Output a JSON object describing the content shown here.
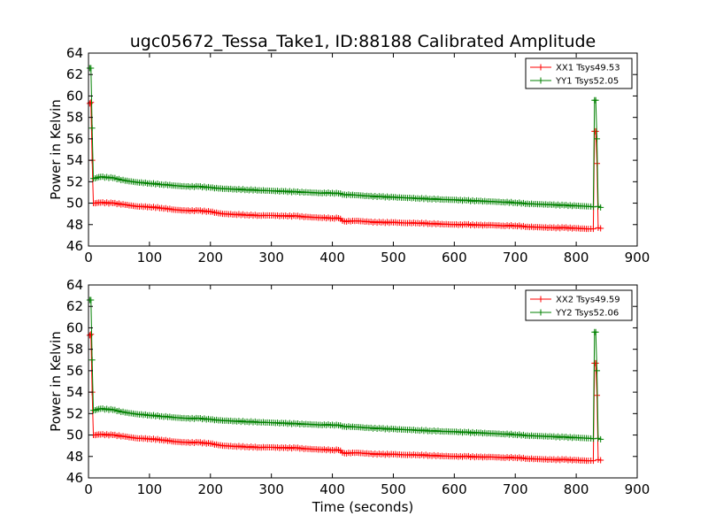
{
  "chart_data": [
    {
      "type": "line",
      "title": "ugc05672_Tessa_Take1, ID:88188 Calibrated Amplitude",
      "xlabel": "",
      "ylabel": "Power in Kelvin",
      "xlim": [
        0,
        900
      ],
      "ylim": [
        46,
        64
      ],
      "xticks": [
        0,
        100,
        200,
        300,
        400,
        500,
        600,
        700,
        800,
        900
      ],
      "yticks": [
        46,
        48,
        50,
        52,
        54,
        56,
        58,
        60,
        62,
        64
      ],
      "legend_position": "top-right",
      "marker": "plus",
      "series": [
        {
          "name": "XX1 Tsys49.53",
          "color": "#ff0000",
          "points": [
            [
              2,
              59.3
            ],
            [
              4,
              59.4
            ],
            [
              6,
              54.0
            ],
            [
              8,
              50.0
            ],
            [
              20,
              50.05
            ],
            [
              40,
              50.0
            ],
            [
              60,
              49.85
            ],
            [
              80,
              49.7
            ],
            [
              100,
              49.65
            ],
            [
              120,
              49.55
            ],
            [
              140,
              49.4
            ],
            [
              160,
              49.3
            ],
            [
              180,
              49.3
            ],
            [
              200,
              49.2
            ],
            [
              220,
              49.0
            ],
            [
              240,
              48.95
            ],
            [
              260,
              48.9
            ],
            [
              280,
              48.85
            ],
            [
              300,
              48.85
            ],
            [
              320,
              48.8
            ],
            [
              340,
              48.8
            ],
            [
              360,
              48.7
            ],
            [
              380,
              48.65
            ],
            [
              400,
              48.6
            ],
            [
              410,
              48.6
            ],
            [
              420,
              48.3
            ],
            [
              440,
              48.35
            ],
            [
              460,
              48.25
            ],
            [
              480,
              48.2
            ],
            [
              500,
              48.2
            ],
            [
              520,
              48.15
            ],
            [
              540,
              48.15
            ],
            [
              560,
              48.1
            ],
            [
              580,
              48.05
            ],
            [
              600,
              48.0
            ],
            [
              620,
              48.0
            ],
            [
              640,
              47.95
            ],
            [
              660,
              47.95
            ],
            [
              680,
              47.9
            ],
            [
              700,
              47.9
            ],
            [
              720,
              47.8
            ],
            [
              740,
              47.75
            ],
            [
              760,
              47.7
            ],
            [
              780,
              47.7
            ],
            [
              800,
              47.65
            ],
            [
              820,
              47.6
            ],
            [
              828,
              47.6
            ],
            [
              830,
              56.7
            ],
            [
              832,
              56.7
            ],
            [
              834,
              53.7
            ],
            [
              836,
              47.7
            ],
            [
              840,
              47.65
            ]
          ]
        },
        {
          "name": "YY1 Tsys52.05",
          "color": "#008000",
          "points": [
            [
              2,
              62.6
            ],
            [
              4,
              62.6
            ],
            [
              6,
              57.0
            ],
            [
              8,
              52.3
            ],
            [
              20,
              52.45
            ],
            [
              40,
              52.35
            ],
            [
              60,
              52.1
            ],
            [
              80,
              51.95
            ],
            [
              100,
              51.85
            ],
            [
              120,
              51.75
            ],
            [
              140,
              51.65
            ],
            [
              160,
              51.55
            ],
            [
              180,
              51.55
            ],
            [
              200,
              51.45
            ],
            [
              220,
              51.35
            ],
            [
              240,
              51.3
            ],
            [
              260,
              51.25
            ],
            [
              280,
              51.2
            ],
            [
              300,
              51.15
            ],
            [
              320,
              51.1
            ],
            [
              340,
              51.05
            ],
            [
              360,
              51.0
            ],
            [
              380,
              50.95
            ],
            [
              400,
              50.95
            ],
            [
              410,
              50.9
            ],
            [
              420,
              50.8
            ],
            [
              440,
              50.75
            ],
            [
              460,
              50.65
            ],
            [
              480,
              50.6
            ],
            [
              500,
              50.55
            ],
            [
              520,
              50.5
            ],
            [
              540,
              50.45
            ],
            [
              560,
              50.4
            ],
            [
              580,
              50.35
            ],
            [
              600,
              50.3
            ],
            [
              620,
              50.25
            ],
            [
              640,
              50.2
            ],
            [
              660,
              50.15
            ],
            [
              680,
              50.1
            ],
            [
              700,
              50.05
            ],
            [
              720,
              49.95
            ],
            [
              740,
              49.9
            ],
            [
              760,
              49.85
            ],
            [
              780,
              49.8
            ],
            [
              800,
              49.75
            ],
            [
              820,
              49.7
            ],
            [
              828,
              49.65
            ],
            [
              830,
              59.6
            ],
            [
              832,
              59.6
            ],
            [
              834,
              56.0
            ],
            [
              836,
              49.7
            ],
            [
              840,
              49.6
            ]
          ]
        }
      ]
    },
    {
      "type": "line",
      "title": "",
      "xlabel": "Time (seconds)",
      "ylabel": "Power in Kelvin",
      "xlim": [
        0,
        900
      ],
      "ylim": [
        46,
        64
      ],
      "xticks": [
        0,
        100,
        200,
        300,
        400,
        500,
        600,
        700,
        800,
        900
      ],
      "yticks": [
        46,
        48,
        50,
        52,
        54,
        56,
        58,
        60,
        62,
        64
      ],
      "legend_position": "top-right",
      "marker": "plus",
      "series": [
        {
          "name": "XX2 Tsys49.59",
          "color": "#ff0000",
          "points": [
            [
              2,
              59.3
            ],
            [
              4,
              59.4
            ],
            [
              6,
              54.0
            ],
            [
              8,
              50.0
            ],
            [
              20,
              50.05
            ],
            [
              40,
              50.0
            ],
            [
              60,
              49.85
            ],
            [
              80,
              49.7
            ],
            [
              100,
              49.65
            ],
            [
              120,
              49.55
            ],
            [
              140,
              49.4
            ],
            [
              160,
              49.3
            ],
            [
              180,
              49.3
            ],
            [
              200,
              49.2
            ],
            [
              220,
              49.0
            ],
            [
              240,
              48.95
            ],
            [
              260,
              48.9
            ],
            [
              280,
              48.85
            ],
            [
              300,
              48.85
            ],
            [
              320,
              48.8
            ],
            [
              340,
              48.8
            ],
            [
              360,
              48.7
            ],
            [
              380,
              48.65
            ],
            [
              400,
              48.6
            ],
            [
              410,
              48.6
            ],
            [
              420,
              48.3
            ],
            [
              440,
              48.35
            ],
            [
              460,
              48.25
            ],
            [
              480,
              48.2
            ],
            [
              500,
              48.2
            ],
            [
              520,
              48.15
            ],
            [
              540,
              48.15
            ],
            [
              560,
              48.1
            ],
            [
              580,
              48.05
            ],
            [
              600,
              48.0
            ],
            [
              620,
              48.0
            ],
            [
              640,
              47.95
            ],
            [
              660,
              47.95
            ],
            [
              680,
              47.9
            ],
            [
              700,
              47.9
            ],
            [
              720,
              47.8
            ],
            [
              740,
              47.75
            ],
            [
              760,
              47.7
            ],
            [
              780,
              47.7
            ],
            [
              800,
              47.65
            ],
            [
              820,
              47.6
            ],
            [
              828,
              47.6
            ],
            [
              830,
              56.7
            ],
            [
              832,
              56.7
            ],
            [
              834,
              53.7
            ],
            [
              836,
              47.7
            ],
            [
              840,
              47.65
            ]
          ]
        },
        {
          "name": "YY2 Tsys52.06",
          "color": "#008000",
          "points": [
            [
              2,
              62.6
            ],
            [
              4,
              62.6
            ],
            [
              6,
              57.0
            ],
            [
              8,
              52.3
            ],
            [
              20,
              52.45
            ],
            [
              40,
              52.35
            ],
            [
              60,
              52.1
            ],
            [
              80,
              51.95
            ],
            [
              100,
              51.85
            ],
            [
              120,
              51.75
            ],
            [
              140,
              51.65
            ],
            [
              160,
              51.55
            ],
            [
              180,
              51.55
            ],
            [
              200,
              51.45
            ],
            [
              220,
              51.35
            ],
            [
              240,
              51.3
            ],
            [
              260,
              51.25
            ],
            [
              280,
              51.2
            ],
            [
              300,
              51.15
            ],
            [
              320,
              51.1
            ],
            [
              340,
              51.05
            ],
            [
              360,
              51.0
            ],
            [
              380,
              50.95
            ],
            [
              400,
              50.95
            ],
            [
              410,
              50.9
            ],
            [
              420,
              50.8
            ],
            [
              440,
              50.75
            ],
            [
              460,
              50.65
            ],
            [
              480,
              50.6
            ],
            [
              500,
              50.55
            ],
            [
              520,
              50.5
            ],
            [
              540,
              50.45
            ],
            [
              560,
              50.4
            ],
            [
              580,
              50.35
            ],
            [
              600,
              50.3
            ],
            [
              620,
              50.25
            ],
            [
              640,
              50.2
            ],
            [
              660,
              50.15
            ],
            [
              680,
              50.1
            ],
            [
              700,
              50.05
            ],
            [
              720,
              49.95
            ],
            [
              740,
              49.9
            ],
            [
              760,
              49.85
            ],
            [
              780,
              49.8
            ],
            [
              800,
              49.75
            ],
            [
              820,
              49.7
            ],
            [
              828,
              49.65
            ],
            [
              830,
              59.6
            ],
            [
              832,
              59.6
            ],
            [
              834,
              56.0
            ],
            [
              836,
              49.7
            ],
            [
              840,
              49.6
            ]
          ]
        }
      ]
    }
  ]
}
